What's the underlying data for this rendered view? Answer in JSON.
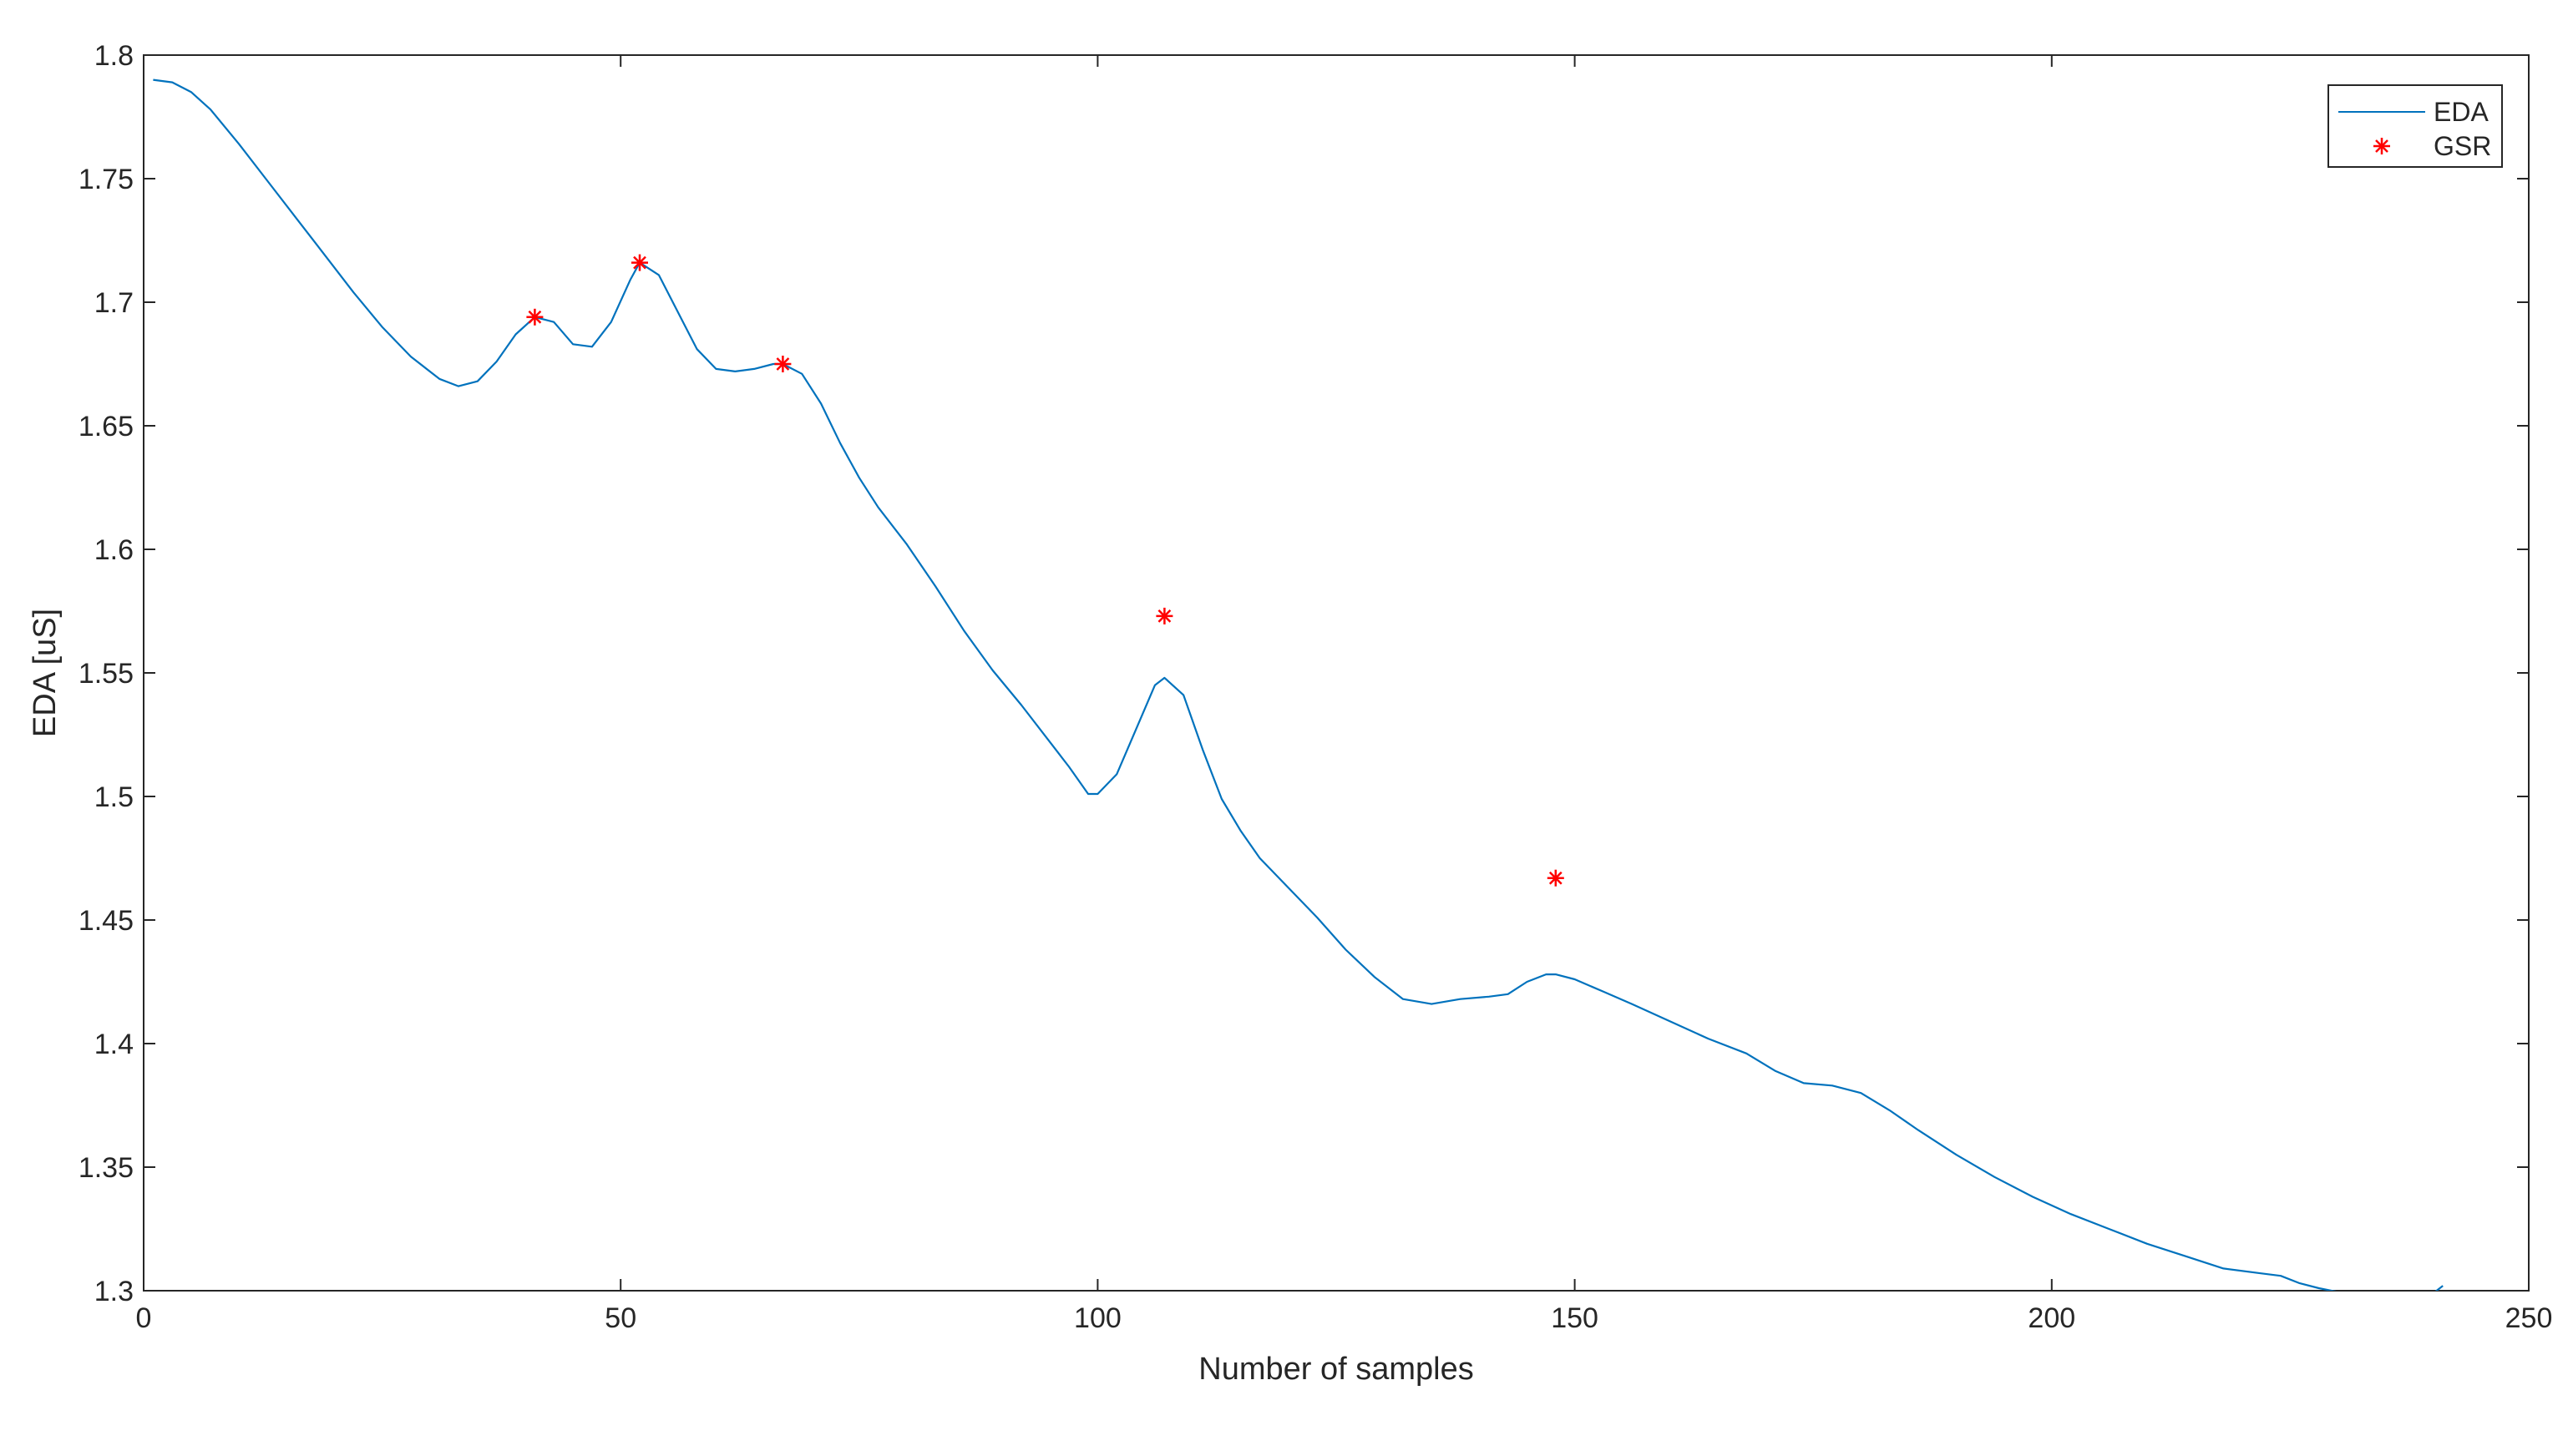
{
  "chart_data": {
    "type": "line",
    "xlabel": "Number of samples",
    "ylabel": "EDA [uS]",
    "xlim": [
      0,
      250
    ],
    "ylim": [
      1.3,
      1.8
    ],
    "x_ticks": [
      0,
      50,
      100,
      150,
      200,
      250
    ],
    "y_ticks": [
      1.3,
      1.35,
      1.4,
      1.45,
      1.5,
      1.55,
      1.6,
      1.65,
      1.7,
      1.75,
      1.8
    ],
    "x_tick_labels": [
      "0",
      "50",
      "100",
      "150",
      "200",
      "250"
    ],
    "y_tick_labels": [
      "1.3",
      "1.35",
      "1.4",
      "1.45",
      "1.5",
      "1.55",
      "1.6",
      "1.65",
      "1.7",
      "1.75",
      "1.8"
    ],
    "grid": false,
    "legend_position": "top-right",
    "series": [
      {
        "name": "EDA",
        "kind": "line",
        "color": "#0072BD",
        "x": [
          1,
          3,
          5,
          7,
          10,
          13,
          16,
          19,
          22,
          25,
          28,
          31,
          33,
          35,
          37,
          39,
          41,
          43,
          45,
          47,
          49,
          51,
          52,
          54,
          56,
          58,
          60,
          62,
          64,
          66,
          67,
          69,
          71,
          73,
          75,
          77,
          80,
          83,
          86,
          89,
          92,
          95,
          97,
          99,
          100,
          102,
          104,
          106,
          107,
          109,
          111,
          113,
          115,
          117,
          120,
          123,
          126,
          129,
          132,
          135,
          138,
          141,
          143,
          145,
          147,
          148,
          150,
          153,
          156,
          160,
          164,
          168,
          171,
          174,
          177,
          180,
          183,
          186,
          190,
          194,
          198,
          202,
          206,
          210,
          214,
          218,
          222,
          224,
          226,
          228,
          232,
          236,
          238,
          241
        ],
        "y": [
          1.79,
          1.789,
          1.785,
          1.778,
          1.764,
          1.749,
          1.734,
          1.719,
          1.704,
          1.69,
          1.678,
          1.669,
          1.666,
          1.668,
          1.676,
          1.687,
          1.694,
          1.692,
          1.683,
          1.682,
          1.692,
          1.709,
          1.716,
          1.711,
          1.696,
          1.681,
          1.673,
          1.672,
          1.673,
          1.675,
          1.675,
          1.671,
          1.659,
          1.643,
          1.629,
          1.617,
          1.602,
          1.585,
          1.567,
          1.551,
          1.537,
          1.522,
          1.512,
          1.501,
          1.501,
          1.509,
          1.527,
          1.545,
          1.548,
          1.541,
          1.519,
          1.499,
          1.486,
          1.475,
          1.463,
          1.451,
          1.438,
          1.427,
          1.418,
          1.416,
          1.418,
          1.419,
          1.42,
          1.425,
          1.428,
          1.428,
          1.426,
          1.421,
          1.416,
          1.409,
          1.402,
          1.396,
          1.389,
          1.384,
          1.383,
          1.38,
          1.373,
          1.365,
          1.355,
          1.346,
          1.338,
          1.331,
          1.325,
          1.319,
          1.314,
          1.309,
          1.307,
          1.306,
          1.303,
          1.301,
          1.298,
          1.295,
          1.293,
          1.302
        ]
      },
      {
        "name": "GSR",
        "kind": "markers",
        "marker": "asterisk",
        "color": "#FF0000",
        "x": [
          41,
          52,
          67,
          107,
          148
        ],
        "y": [
          1.694,
          1.716,
          1.675,
          1.573,
          1.467
        ]
      }
    ]
  }
}
